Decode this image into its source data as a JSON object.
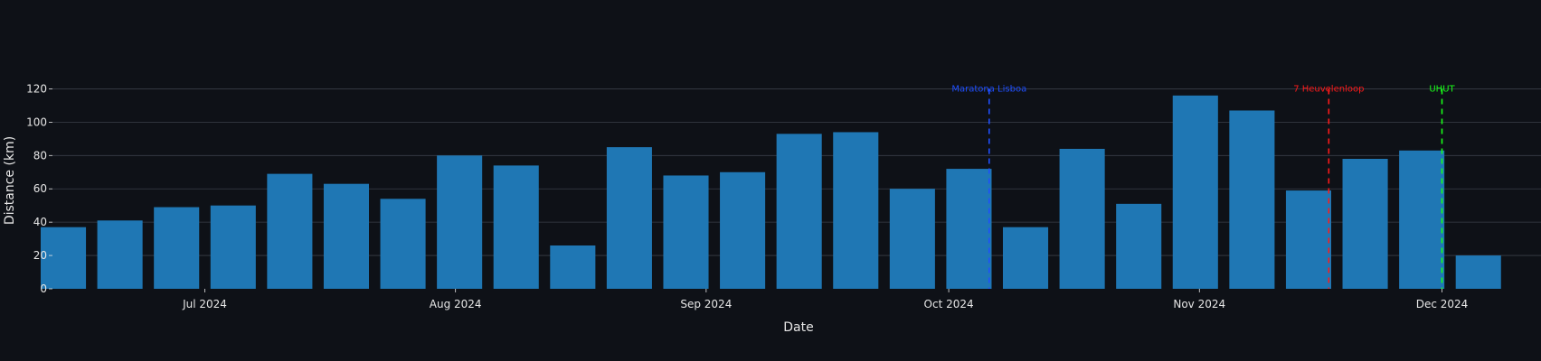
{
  "chart_data": {
    "type": "bar",
    "xlabel": "Date",
    "ylabel": "Distance (km)",
    "ylim": [
      0,
      130
    ],
    "yticks": [
      0,
      20,
      40,
      60,
      80,
      100,
      120
    ],
    "grid": true,
    "x_tick_labels": [
      {
        "label": "Jul 2024",
        "date": "2024-07-01"
      },
      {
        "label": "Aug 2024",
        "date": "2024-08-01"
      },
      {
        "label": "Sep 2024",
        "date": "2024-09-01"
      },
      {
        "label": "Oct 2024",
        "date": "2024-10-01"
      },
      {
        "label": "Nov 2024",
        "date": "2024-11-01"
      },
      {
        "label": "Dec 2024",
        "date": "2024-12-01"
      }
    ],
    "bars": [
      {
        "week": "2024-06-10",
        "value": 37
      },
      {
        "week": "2024-06-17",
        "value": 41
      },
      {
        "week": "2024-06-24",
        "value": 49
      },
      {
        "week": "2024-07-01",
        "value": 50
      },
      {
        "week": "2024-07-08",
        "value": 69
      },
      {
        "week": "2024-07-15",
        "value": 63
      },
      {
        "week": "2024-07-22",
        "value": 54
      },
      {
        "week": "2024-07-29",
        "value": 80
      },
      {
        "week": "2024-08-05",
        "value": 74
      },
      {
        "week": "2024-08-12",
        "value": 26
      },
      {
        "week": "2024-08-19",
        "value": 85
      },
      {
        "week": "2024-08-26",
        "value": 68
      },
      {
        "week": "2024-09-02",
        "value": 70
      },
      {
        "week": "2024-09-09",
        "value": 93
      },
      {
        "week": "2024-09-16",
        "value": 94
      },
      {
        "week": "2024-09-23",
        "value": 60
      },
      {
        "week": "2024-09-30",
        "value": 72
      },
      {
        "week": "2024-10-07",
        "value": 37
      },
      {
        "week": "2024-10-14",
        "value": 84
      },
      {
        "week": "2024-10-21",
        "value": 51
      },
      {
        "week": "2024-10-28",
        "value": 116
      },
      {
        "week": "2024-11-04",
        "value": 107
      },
      {
        "week": "2024-11-11",
        "value": 59
      },
      {
        "week": "2024-11-18",
        "value": 78
      },
      {
        "week": "2024-11-25",
        "value": 83
      },
      {
        "week": "2024-12-02",
        "value": 20
      }
    ],
    "events": [
      {
        "name": "Maratona Lisboa",
        "date": "2024-10-06",
        "color": "#1f4fff"
      },
      {
        "name": "7 Heuvelenloop",
        "date": "2024-11-17",
        "color": "#ff1a1a"
      },
      {
        "name": "UHUT",
        "date": "2024-12-01",
        "color": "#19ff19"
      }
    ],
    "colors": {
      "background": "#0e1117",
      "bar": "#1f77b4",
      "grid": "#3a3f48",
      "text": "#e6e6e6"
    }
  }
}
